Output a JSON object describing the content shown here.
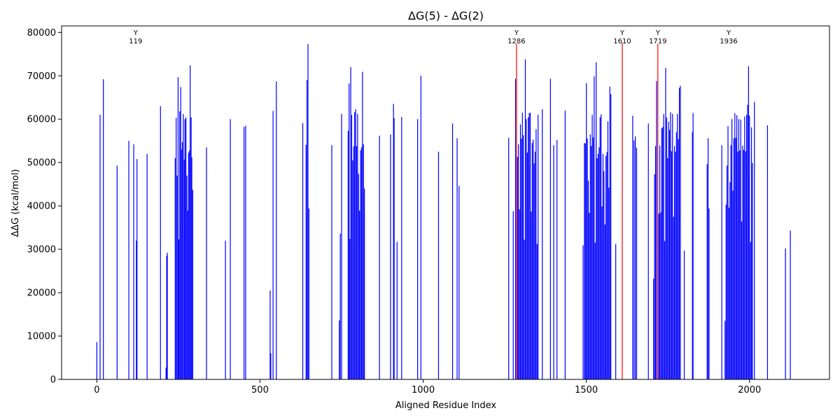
{
  "chart_data": {
    "type": "bar",
    "title": "ΔG(5) - ΔG(2)",
    "xlabel": "Aligned Residue Index",
    "ylabel": "ΔΔG (kcal/mol)",
    "xlim": [
      -108,
      2245
    ],
    "ylim": [
      0,
      81500
    ],
    "xticks": [
      0,
      500,
      1000,
      1500,
      2000
    ],
    "yticks": [
      0,
      10000,
      20000,
      30000,
      40000,
      50000,
      60000,
      70000,
      80000
    ],
    "grid": false,
    "series_colors": {
      "default": "#0000ff",
      "highlight": "#ff0000"
    },
    "bars": [
      {
        "x": 0,
        "y": 8600
      },
      {
        "x": 10,
        "y": 61000
      },
      {
        "x": 20,
        "y": 69200
      },
      {
        "x": 62,
        "y": 49300
      },
      {
        "x": 98,
        "y": 55000
      },
      {
        "x": 113,
        "y": 54200
      },
      {
        "x": 121,
        "y": 32000
      },
      {
        "x": 123,
        "y": 50800
      },
      {
        "x": 154,
        "y": 52000
      },
      {
        "x": 195,
        "y": 63000
      },
      {
        "x": 212,
        "y": 2700
      },
      {
        "x": 214,
        "y": 28500
      },
      {
        "x": 216,
        "y": 29200
      },
      {
        "x": 240,
        "y": 51000
      },
      {
        "x": 243,
        "y": 60300
      },
      {
        "x": 246,
        "y": 47000
      },
      {
        "x": 249,
        "y": 69700
      },
      {
        "x": 251,
        "y": 32300
      },
      {
        "x": 254,
        "y": 61800
      },
      {
        "x": 257,
        "y": 67400
      },
      {
        "x": 259,
        "y": 53000
      },
      {
        "x": 262,
        "y": 54700
      },
      {
        "x": 265,
        "y": 61200
      },
      {
        "x": 268,
        "y": 50700
      },
      {
        "x": 270,
        "y": 60000
      },
      {
        "x": 273,
        "y": 60400
      },
      {
        "x": 276,
        "y": 47000
      },
      {
        "x": 278,
        "y": 38900
      },
      {
        "x": 281,
        "y": 52300
      },
      {
        "x": 284,
        "y": 52800
      },
      {
        "x": 286,
        "y": 72400
      },
      {
        "x": 289,
        "y": 60400
      },
      {
        "x": 291,
        "y": 51200
      },
      {
        "x": 294,
        "y": 43700
      },
      {
        "x": 336,
        "y": 53500
      },
      {
        "x": 394,
        "y": 32000
      },
      {
        "x": 409,
        "y": 60000
      },
      {
        "x": 451,
        "y": 58200
      },
      {
        "x": 456,
        "y": 58500
      },
      {
        "x": 531,
        "y": 20500
      },
      {
        "x": 533,
        "y": 6000
      },
      {
        "x": 540,
        "y": 61900
      },
      {
        "x": 550,
        "y": 68700
      },
      {
        "x": 631,
        "y": 59100
      },
      {
        "x": 641,
        "y": 54100
      },
      {
        "x": 644,
        "y": 69000
      },
      {
        "x": 647,
        "y": 77300
      },
      {
        "x": 650,
        "y": 39400
      },
      {
        "x": 720,
        "y": 54000
      },
      {
        "x": 743,
        "y": 13600
      },
      {
        "x": 746,
        "y": 33600
      },
      {
        "x": 750,
        "y": 61200
      },
      {
        "x": 770,
        "y": 57300
      },
      {
        "x": 773,
        "y": 68200
      },
      {
        "x": 775,
        "y": 32400
      },
      {
        "x": 778,
        "y": 72000
      },
      {
        "x": 781,
        "y": 61000
      },
      {
        "x": 784,
        "y": 50500
      },
      {
        "x": 787,
        "y": 53700
      },
      {
        "x": 790,
        "y": 61600
      },
      {
        "x": 793,
        "y": 62300
      },
      {
        "x": 796,
        "y": 53800
      },
      {
        "x": 799,
        "y": 61200
      },
      {
        "x": 802,
        "y": 47400
      },
      {
        "x": 805,
        "y": 38900
      },
      {
        "x": 808,
        "y": 52800
      },
      {
        "x": 811,
        "y": 53500
      },
      {
        "x": 814,
        "y": 70900
      },
      {
        "x": 817,
        "y": 54200
      },
      {
        "x": 820,
        "y": 44000
      },
      {
        "x": 866,
        "y": 56200
      },
      {
        "x": 900,
        "y": 56500
      },
      {
        "x": 909,
        "y": 63500
      },
      {
        "x": 911,
        "y": 60200
      },
      {
        "x": 920,
        "y": 31700
      },
      {
        "x": 934,
        "y": 60500
      },
      {
        "x": 983,
        "y": 60000
      },
      {
        "x": 993,
        "y": 70000
      },
      {
        "x": 1047,
        "y": 52500
      },
      {
        "x": 1090,
        "y": 59000
      },
      {
        "x": 1104,
        "y": 55600
      },
      {
        "x": 1110,
        "y": 44600
      },
      {
        "x": 1262,
        "y": 55700
      },
      {
        "x": 1276,
        "y": 38800
      },
      {
        "x": 1283,
        "y": 69300
      },
      {
        "x": 1286,
        "y": 77400,
        "highlight": true
      },
      {
        "x": 1289,
        "y": 51300
      },
      {
        "x": 1292,
        "y": 54200
      },
      {
        "x": 1295,
        "y": 39200
      },
      {
        "x": 1298,
        "y": 58800
      },
      {
        "x": 1301,
        "y": 55500
      },
      {
        "x": 1304,
        "y": 61500
      },
      {
        "x": 1307,
        "y": 56300
      },
      {
        "x": 1310,
        "y": 32200
      },
      {
        "x": 1313,
        "y": 73800
      },
      {
        "x": 1316,
        "y": 60000
      },
      {
        "x": 1319,
        "y": 52300
      },
      {
        "x": 1322,
        "y": 60400
      },
      {
        "x": 1325,
        "y": 61400
      },
      {
        "x": 1328,
        "y": 61500
      },
      {
        "x": 1331,
        "y": 38700
      },
      {
        "x": 1334,
        "y": 54500
      },
      {
        "x": 1337,
        "y": 55300
      },
      {
        "x": 1340,
        "y": 49800
      },
      {
        "x": 1343,
        "y": 52500
      },
      {
        "x": 1346,
        "y": 57700
      },
      {
        "x": 1349,
        "y": 31200
      },
      {
        "x": 1352,
        "y": 61000
      },
      {
        "x": 1365,
        "y": 62300
      },
      {
        "x": 1390,
        "y": 69300
      },
      {
        "x": 1400,
        "y": 54000
      },
      {
        "x": 1410,
        "y": 55200
      },
      {
        "x": 1435,
        "y": 62000
      },
      {
        "x": 1490,
        "y": 30900
      },
      {
        "x": 1494,
        "y": 54500
      },
      {
        "x": 1497,
        "y": 54400
      },
      {
        "x": 1500,
        "y": 68300
      },
      {
        "x": 1503,
        "y": 55500
      },
      {
        "x": 1506,
        "y": 45800
      },
      {
        "x": 1509,
        "y": 38400
      },
      {
        "x": 1512,
        "y": 56500
      },
      {
        "x": 1515,
        "y": 53800
      },
      {
        "x": 1518,
        "y": 61000
      },
      {
        "x": 1521,
        "y": 55800
      },
      {
        "x": 1524,
        "y": 69900
      },
      {
        "x": 1527,
        "y": 31500
      },
      {
        "x": 1530,
        "y": 73100
      },
      {
        "x": 1533,
        "y": 51000
      },
      {
        "x": 1536,
        "y": 52000
      },
      {
        "x": 1539,
        "y": 53500
      },
      {
        "x": 1542,
        "y": 60400
      },
      {
        "x": 1545,
        "y": 61100
      },
      {
        "x": 1548,
        "y": 39900
      },
      {
        "x": 1551,
        "y": 52000
      },
      {
        "x": 1554,
        "y": 48000
      },
      {
        "x": 1557,
        "y": 35700
      },
      {
        "x": 1560,
        "y": 51500
      },
      {
        "x": 1563,
        "y": 52400
      },
      {
        "x": 1566,
        "y": 59500
      },
      {
        "x": 1569,
        "y": 44200
      },
      {
        "x": 1572,
        "y": 67500
      },
      {
        "x": 1575,
        "y": 65800
      },
      {
        "x": 1590,
        "y": 31200
      },
      {
        "x": 1610,
        "y": 77600,
        "highlight": true
      },
      {
        "x": 1642,
        "y": 60800
      },
      {
        "x": 1646,
        "y": 55100
      },
      {
        "x": 1650,
        "y": 56000
      },
      {
        "x": 1654,
        "y": 53400
      },
      {
        "x": 1690,
        "y": 59000
      },
      {
        "x": 1706,
        "y": 23200
      },
      {
        "x": 1709,
        "y": 47300
      },
      {
        "x": 1712,
        "y": 53800
      },
      {
        "x": 1715,
        "y": 68800
      },
      {
        "x": 1719,
        "y": 77400,
        "highlight": true
      },
      {
        "x": 1722,
        "y": 38200
      },
      {
        "x": 1725,
        "y": 53900
      },
      {
        "x": 1728,
        "y": 38500
      },
      {
        "x": 1731,
        "y": 57900
      },
      {
        "x": 1734,
        "y": 58200
      },
      {
        "x": 1737,
        "y": 61200
      },
      {
        "x": 1740,
        "y": 31900
      },
      {
        "x": 1743,
        "y": 71800
      },
      {
        "x": 1746,
        "y": 60400
      },
      {
        "x": 1749,
        "y": 51000
      },
      {
        "x": 1752,
        "y": 59400
      },
      {
        "x": 1755,
        "y": 57500
      },
      {
        "x": 1758,
        "y": 61600
      },
      {
        "x": 1761,
        "y": 52600
      },
      {
        "x": 1764,
        "y": 61200
      },
      {
        "x": 1767,
        "y": 37500
      },
      {
        "x": 1770,
        "y": 53800
      },
      {
        "x": 1773,
        "y": 52500
      },
      {
        "x": 1776,
        "y": 57000
      },
      {
        "x": 1779,
        "y": 61200
      },
      {
        "x": 1782,
        "y": 55400
      },
      {
        "x": 1785,
        "y": 67200
      },
      {
        "x": 1788,
        "y": 67700
      },
      {
        "x": 1800,
        "y": 29700
      },
      {
        "x": 1825,
        "y": 57000
      },
      {
        "x": 1827,
        "y": 61400
      },
      {
        "x": 1870,
        "y": 49600
      },
      {
        "x": 1873,
        "y": 55600
      },
      {
        "x": 1876,
        "y": 39400
      },
      {
        "x": 1915,
        "y": 54000
      },
      {
        "x": 1925,
        "y": 13500
      },
      {
        "x": 1928,
        "y": 40300
      },
      {
        "x": 1931,
        "y": 49300
      },
      {
        "x": 1934,
        "y": 58400
      },
      {
        "x": 1937,
        "y": 39600
      },
      {
        "x": 1940,
        "y": 45500
      },
      {
        "x": 1943,
        "y": 54000
      },
      {
        "x": 1946,
        "y": 60000
      },
      {
        "x": 1949,
        "y": 43500
      },
      {
        "x": 1952,
        "y": 55600
      },
      {
        "x": 1955,
        "y": 61400
      },
      {
        "x": 1958,
        "y": 55700
      },
      {
        "x": 1961,
        "y": 60900
      },
      {
        "x": 1964,
        "y": 52500
      },
      {
        "x": 1967,
        "y": 60000
      },
      {
        "x": 1970,
        "y": 52800
      },
      {
        "x": 1973,
        "y": 59900
      },
      {
        "x": 1976,
        "y": 36400
      },
      {
        "x": 1979,
        "y": 53900
      },
      {
        "x": 1982,
        "y": 52900
      },
      {
        "x": 1985,
        "y": 60600
      },
      {
        "x": 1988,
        "y": 52600
      },
      {
        "x": 1991,
        "y": 61000
      },
      {
        "x": 1994,
        "y": 63300
      },
      {
        "x": 1997,
        "y": 72200
      },
      {
        "x": 2000,
        "y": 60800
      },
      {
        "x": 2003,
        "y": 31700
      },
      {
        "x": 2006,
        "y": 58100
      },
      {
        "x": 2009,
        "y": 49900
      },
      {
        "x": 2015,
        "y": 64000
      },
      {
        "x": 2055,
        "y": 58600
      },
      {
        "x": 2110,
        "y": 30200
      },
      {
        "x": 2125,
        "y": 34300
      }
    ],
    "annotations": [
      {
        "x": 119,
        "letter": "Y",
        "index": "119"
      },
      {
        "x": 1286,
        "letter": "Y",
        "index": "1286"
      },
      {
        "x": 1610,
        "letter": "Y",
        "index": "1610"
      },
      {
        "x": 1719,
        "letter": "Y",
        "index": "1719"
      },
      {
        "x": 1936,
        "letter": "Y",
        "index": "1936"
      }
    ]
  }
}
